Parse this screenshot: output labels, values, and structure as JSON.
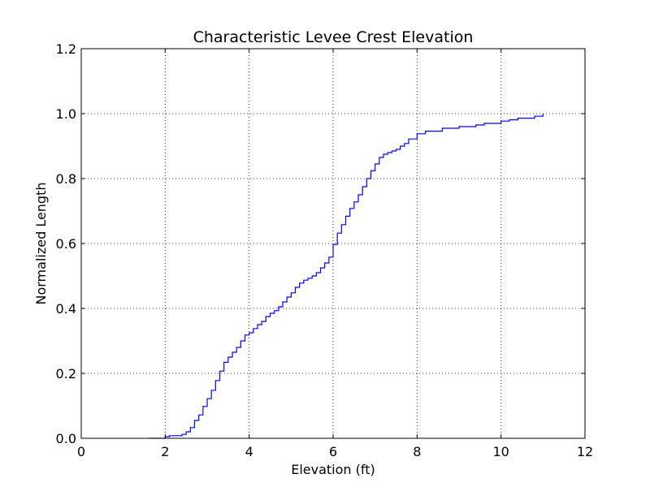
{
  "chart_data": {
    "type": "line",
    "drawstyle": "steps-post",
    "title": "Characteristic Levee Crest Elevation",
    "xlabel": "Elevation (ft)",
    "ylabel": "Normalized Length",
    "xlim": [
      0,
      12
    ],
    "ylim": [
      0,
      1.2
    ],
    "xticks": [
      0,
      2,
      4,
      6,
      8,
      10,
      12
    ],
    "xtick_labels": [
      "0",
      "2",
      "4",
      "6",
      "8",
      "10",
      "12"
    ],
    "yticks": [
      0.0,
      0.2,
      0.4,
      0.6,
      0.8,
      1.0,
      1.2
    ],
    "ytick_labels": [
      "0.0",
      "0.2",
      "0.4",
      "0.6",
      "0.8",
      "1.0",
      "1.2"
    ],
    "grid": true,
    "series_color": "#0000ff",
    "series": [
      {
        "x": [
          1.6,
          2.0,
          2.1,
          2.4,
          2.5,
          2.6,
          2.7,
          2.8,
          2.9,
          3.0,
          3.1,
          3.2,
          3.3,
          3.4,
          3.5,
          3.6,
          3.7,
          3.8,
          3.9,
          4.0,
          4.1,
          4.2,
          4.3,
          4.4,
          4.5,
          4.6,
          4.7,
          4.8,
          4.9,
          5.0,
          5.1,
          5.2,
          5.3,
          5.4,
          5.5,
          5.6,
          5.7,
          5.8,
          5.9,
          6.0,
          6.1,
          6.2,
          6.3,
          6.4,
          6.5,
          6.6,
          6.7,
          6.8,
          6.9,
          7.0,
          7.1,
          7.2,
          7.3,
          7.4,
          7.5,
          7.6,
          7.7,
          7.8,
          8.0,
          8.2,
          8.6,
          9.0,
          9.4,
          9.6,
          10.0,
          10.2,
          10.4,
          10.8,
          11.0
        ],
        "y": [
          0.0,
          0.005,
          0.008,
          0.012,
          0.02,
          0.033,
          0.055,
          0.072,
          0.098,
          0.122,
          0.148,
          0.178,
          0.207,
          0.234,
          0.25,
          0.265,
          0.28,
          0.3,
          0.318,
          0.325,
          0.338,
          0.35,
          0.36,
          0.375,
          0.385,
          0.393,
          0.405,
          0.42,
          0.435,
          0.448,
          0.465,
          0.478,
          0.487,
          0.493,
          0.5,
          0.51,
          0.525,
          0.54,
          0.558,
          0.597,
          0.632,
          0.658,
          0.684,
          0.708,
          0.728,
          0.75,
          0.775,
          0.8,
          0.824,
          0.845,
          0.865,
          0.875,
          0.88,
          0.885,
          0.89,
          0.9,
          0.908,
          0.922,
          0.938,
          0.946,
          0.955,
          0.96,
          0.965,
          0.97,
          0.977,
          0.981,
          0.986,
          0.992,
          1.0
        ]
      }
    ]
  }
}
